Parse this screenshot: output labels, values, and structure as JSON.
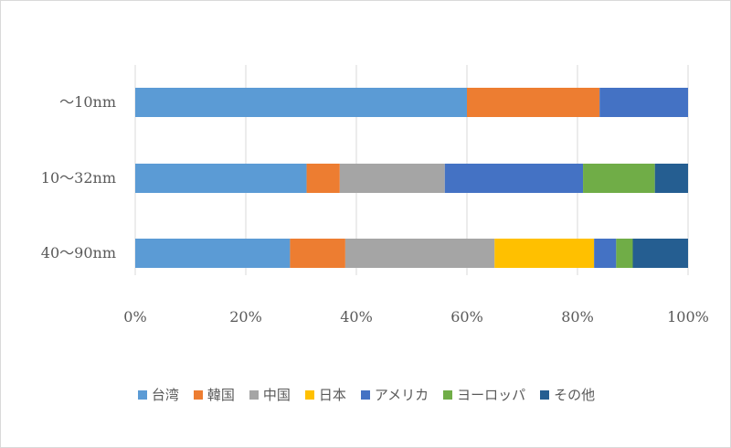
{
  "chart_data": {
    "type": "bar",
    "orientation": "horizontal",
    "stacked": "percent",
    "categories": [
      "〜10nm",
      "10〜32nm",
      "40〜90nm"
    ],
    "series": [
      {
        "name": "台湾",
        "color": "#5b9bd5",
        "values": [
          60,
          31,
          28
        ]
      },
      {
        "name": "韓国",
        "color": "#ed7d31",
        "values": [
          24,
          6,
          10
        ]
      },
      {
        "name": "中国",
        "color": "#a5a5a5",
        "values": [
          0,
          19,
          27
        ]
      },
      {
        "name": "日本",
        "color": "#ffc000",
        "values": [
          0,
          0,
          18
        ]
      },
      {
        "name": "アメリカ",
        "color": "#4472c4",
        "values": [
          16,
          25,
          4
        ]
      },
      {
        "name": "ヨーロッパ",
        "color": "#70ad47",
        "values": [
          0,
          13,
          3
        ]
      },
      {
        "name": "その他",
        "color": "#255e91",
        "values": [
          0,
          6,
          10
        ]
      }
    ],
    "xticks": [
      "0%",
      "20%",
      "40%",
      "60%",
      "80%",
      "100%"
    ],
    "xlim": [
      0,
      100
    ],
    "grid": true,
    "legend": "bottom",
    "title": "",
    "xlabel": "",
    "ylabel": ""
  }
}
